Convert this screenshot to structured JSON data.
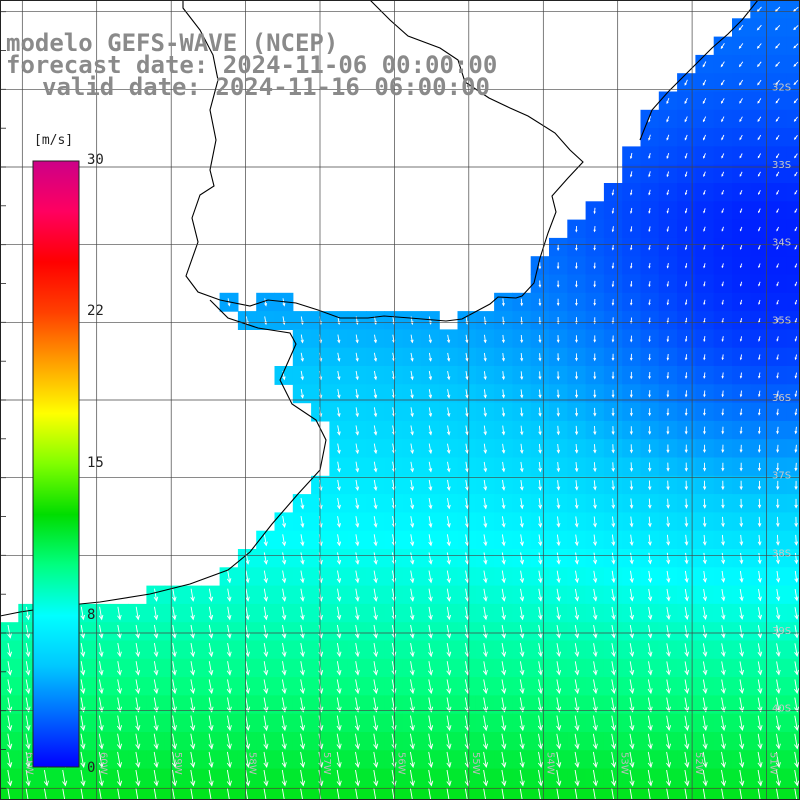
{
  "title": {
    "line1": "modelo GEFS-WAVE (NCEP)",
    "line2": "forecast date: 2024-11-06 00:00:00",
    "line3": "valid date: 2024-11-16 06:00:00"
  },
  "colorbar": {
    "unit": "[m/s]",
    "min": 0,
    "max": 30,
    "ticks": [
      "30",
      "22",
      "15",
      "8",
      "0"
    ],
    "colors": [
      "#0000ff",
      "#0066ff",
      "#00c8ff",
      "#00ffff",
      "#00ff80",
      "#00dd00",
      "#80ff00",
      "#ffff00",
      "#ffa000",
      "#ff4000",
      "#ff0000",
      "#ff0060",
      "#cc0088"
    ]
  },
  "map": {
    "lat_labels": [
      "32S",
      "33S",
      "34S",
      "35S",
      "36S",
      "37S",
      "38S",
      "39S",
      "40S"
    ],
    "lon_labels": [
      "61W",
      "60W",
      "59W",
      "58W",
      "57W",
      "56W",
      "55W",
      "54W",
      "53W",
      "52W",
      "51W"
    ],
    "lat_range": [
      -41.15,
      -30.85
    ],
    "lon_range": [
      -61.3,
      -50.55
    ],
    "land_color": "#ffffff",
    "grid_color": "#444444",
    "arrow_color": "#ffffff"
  }
}
